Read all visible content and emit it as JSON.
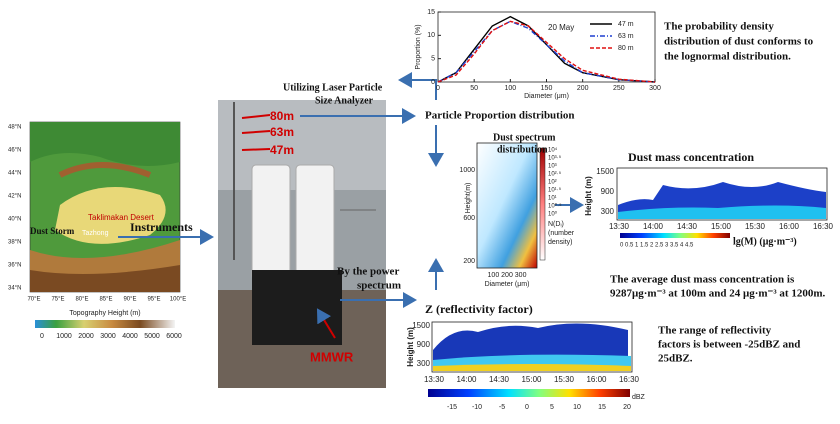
{
  "map": {
    "dust_storm": "Dust Storm",
    "desert": "Taklimakan Desert",
    "tazhong": "Tazhong",
    "xlabel": "Topography Height   (m)",
    "lat_ticks": [
      "48°N",
      "46°N",
      "44°N",
      "42°N",
      "40°N",
      "38°N",
      "36°N",
      "34°N"
    ],
    "lon_ticks": [
      "70°E",
      "75°E",
      "80°E",
      "85°E",
      "90°E",
      "95°E",
      "100°E"
    ],
    "colorbar_ticks": [
      "0",
      "1000",
      "2000",
      "3000",
      "4000",
      "5000",
      "6000"
    ]
  },
  "flow": {
    "instruments": "Instruments",
    "utilizing": [
      "Utilizing Laser Particle",
      "Size Analyzer"
    ],
    "particle": "Particle Proportion distribution",
    "power": [
      "By  the power",
      "spectrum"
    ],
    "z": "Z (reflectivity factor)",
    "mmwr": "MMWR",
    "heights": [
      "80m",
      "63m",
      "47m"
    ]
  },
  "pdf_chart": {
    "ylabel": "Proportion (%)",
    "xlabel": "Diameter (μm)",
    "annotation": "20 May",
    "x": [
      0,
      25,
      50,
      75,
      100,
      125,
      150,
      175,
      200,
      250,
      300
    ],
    "xlim": [
      0,
      300
    ],
    "ylim": [
      0,
      15
    ],
    "xticks": [
      0,
      50,
      100,
      150,
      200,
      250,
      300
    ],
    "yticks": [
      0,
      5,
      10,
      15
    ],
    "series": [
      {
        "name": "47 m",
        "color": "#000000",
        "dash": "",
        "values": [
          0,
          2,
          7,
          12,
          14,
          12,
          8,
          4,
          2,
          0.5,
          0
        ]
      },
      {
        "name": "63 m",
        "color": "#1f3fd0",
        "dash": "5 2 1 2",
        "values": [
          0,
          2,
          6.5,
          11,
          13,
          11.5,
          8,
          4.5,
          2,
          0.5,
          0
        ]
      },
      {
        "name": "80 m",
        "color": "#e01010",
        "dash": "4 2",
        "values": [
          0,
          1.5,
          6,
          11,
          13,
          12,
          8.5,
          5,
          2.5,
          0.6,
          0
        ]
      }
    ]
  },
  "pdf_note": [
    "The probability density",
    "distribution of dust conforms to",
    "the lognormal distribution."
  ],
  "spectrum": {
    "title": [
      "Dust spectrum",
      "distribution"
    ],
    "ylabel": "Height(m)",
    "yticks": [
      "1000",
      "600",
      "200"
    ],
    "xticks": "100 200 300",
    "xlabel": "Diameter (μm)",
    "cbar_label": [
      "N(Dᵢ)",
      "(number",
      "density)"
    ],
    "cbar_ticks": [
      "10⁴",
      "10³·⁵",
      "10³",
      "10²·⁵",
      "10²",
      "10¹·⁵",
      "10¹",
      "10⁰·⁵",
      "10⁰"
    ]
  },
  "mass": {
    "title": "Dust mass concentration",
    "ylabel": "Height (m)",
    "yticks": [
      "1500",
      "900",
      "300"
    ],
    "xticks": [
      "13:30",
      "14:00",
      "14:30",
      "15:00",
      "15:30",
      "16:00",
      "16:30"
    ],
    "cbar_ticks": "0  0.5  1  1.5  2  2.5  3  3.5  4  4.5",
    "cbar_label": "lg(M) (μg·m⁻³)",
    "note": [
      "The average dust mass concentration is",
      "9287μg·m⁻³ at 100m and 24  μg·m⁻³ at 1200m."
    ]
  },
  "zchart": {
    "ylabel": "Height (m)",
    "yticks": [
      "1500",
      "900",
      "300"
    ],
    "xticks": [
      "13:30",
      "14:00",
      "14:30",
      "15:00",
      "15:30",
      "16:00",
      "16:30"
    ],
    "cbar_ticks": [
      "-15",
      "-10",
      "-5",
      "0",
      "5",
      "10",
      "15",
      "20"
    ],
    "cbar_label": "dBZ",
    "note": [
      "The range of  reflectivity",
      "factors is between -25dBZ and",
      "25dBZ."
    ]
  }
}
